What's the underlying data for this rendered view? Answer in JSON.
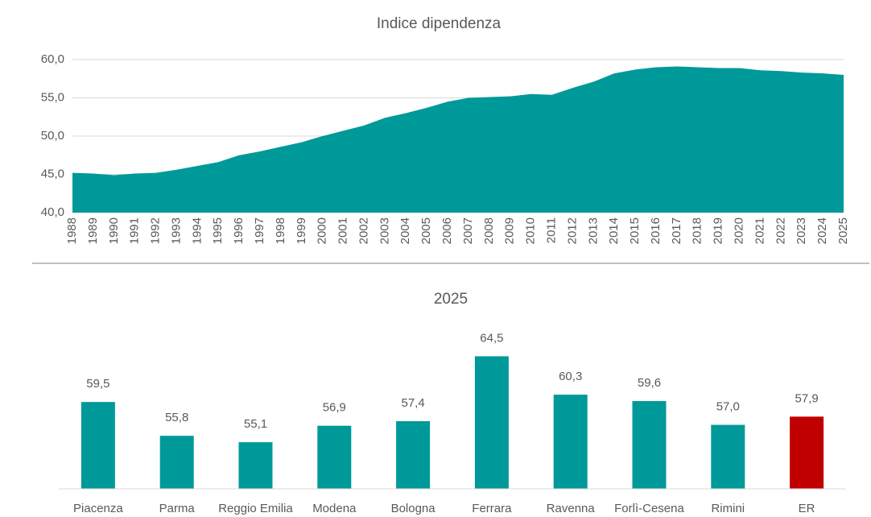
{
  "chart_data": [
    {
      "type": "area",
      "title": "Indice dipendenza",
      "x": [
        1988,
        1989,
        1990,
        1991,
        1992,
        1993,
        1994,
        1995,
        1996,
        1997,
        1998,
        1999,
        2000,
        2001,
        2002,
        2003,
        2004,
        2005,
        2006,
        2007,
        2008,
        2009,
        2010,
        2011,
        2012,
        2013,
        2014,
        2015,
        2016,
        2017,
        2018,
        2019,
        2020,
        2021,
        2022,
        2023,
        2024,
        2025
      ],
      "values": [
        45.2,
        45.1,
        44.9,
        45.1,
        45.2,
        45.6,
        46.1,
        46.6,
        47.5,
        48.0,
        48.6,
        49.2,
        50.0,
        50.7,
        51.4,
        52.4,
        53.0,
        53.7,
        54.5,
        55.0,
        55.1,
        55.2,
        55.5,
        55.4,
        56.3,
        57.1,
        58.2,
        58.7,
        59.0,
        59.1,
        59.0,
        58.9,
        58.9,
        58.6,
        58.5,
        58.3,
        58.2,
        58.0
      ],
      "xlim": [
        1988,
        2025
      ],
      "ylim": [
        40,
        60
      ],
      "yticks": [
        {
          "value": 40,
          "label": "40,0"
        },
        {
          "value": 45,
          "label": "45,0"
        },
        {
          "value": 50,
          "label": "50,0"
        },
        {
          "value": 55,
          "label": "55,0"
        },
        {
          "value": 60,
          "label": "60,0"
        }
      ],
      "color": "#009999",
      "grid": true
    },
    {
      "type": "bar",
      "title": "2025",
      "categories": [
        "Piacenza",
        "Parma",
        "Reggio Emilia",
        "Modena",
        "Bologna",
        "Ferrara",
        "Ravenna",
        "Forlì-Cesena",
        "Rimini",
        "ER"
      ],
      "values": [
        59.5,
        55.8,
        55.1,
        56.9,
        57.4,
        64.5,
        60.3,
        59.6,
        57.0,
        57.9
      ],
      "value_labels": [
        "59,5",
        "55,8",
        "55,1",
        "56,9",
        "57,4",
        "64,5",
        "60,3",
        "59,6",
        "57,0",
        "57,9"
      ],
      "colors": [
        "#009999",
        "#009999",
        "#009999",
        "#009999",
        "#009999",
        "#009999",
        "#009999",
        "#009999",
        "#009999",
        "#c00000"
      ],
      "ylim": [
        50,
        70
      ]
    }
  ]
}
